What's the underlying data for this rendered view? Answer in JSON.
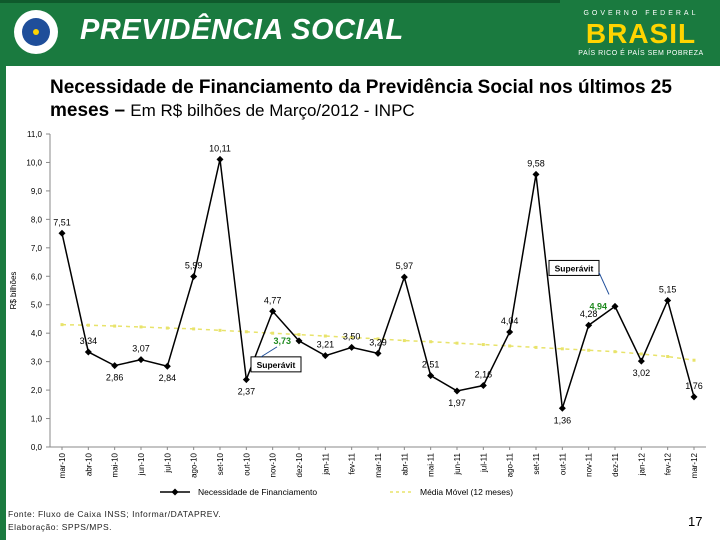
{
  "header": {
    "brand": "PREVIDÊNCIA SOCIAL",
    "gov_line": "GOVERNO FEDERAL",
    "country": "BRASIL",
    "slogan": "PAÍS RICO É PAÍS SEM POBREZA"
  },
  "title": {
    "main": "Necessidade de Financiamento da Previdência Social nos últimos 25 meses –",
    "sub": "Em R$ bilhões de Março/2012 - INPC"
  },
  "footer": {
    "source": "Fonte: Fluxo de Caixa INSS; Informar/DATAPREV.",
    "elaboration": "Elaboração: SPPS/MPS."
  },
  "page_number": "17",
  "colors": {
    "brand_green": "#1a7a3f",
    "series_main": "#000000",
    "series_moving_avg": "#e8e36a",
    "annotation_green": "#1f8a1f"
  },
  "chart_data": {
    "type": "line",
    "ylabel": "R$ bilhões",
    "ylim": [
      0,
      11
    ],
    "yticks": [
      "0,0",
      "1,0",
      "2,0",
      "3,0",
      "4,0",
      "5,0",
      "6,0",
      "7,0",
      "8,0",
      "9,0",
      "10,0",
      "11,0"
    ],
    "grid": false,
    "legend_position": "bottom",
    "categories": [
      "mar-10",
      "abr-10",
      "mai-10",
      "jun-10",
      "jul-10",
      "ago-10",
      "set-10",
      "out-10",
      "nov-10",
      "dez-10",
      "jan-11",
      "fev-11",
      "mar-11",
      "abr-11",
      "mai-11",
      "jun-11",
      "jul-11",
      "ago-11",
      "set-11",
      "out-11",
      "nov-11",
      "dez-11",
      "jan-12",
      "fev-12",
      "mar-12"
    ],
    "series": [
      {
        "name": "Necessidade de Financiamento",
        "values": [
          7.51,
          3.34,
          2.86,
          3.07,
          2.84,
          5.99,
          10.11,
          2.37,
          4.77,
          null,
          3.21,
          3.5,
          3.29,
          5.97,
          2.51,
          1.97,
          2.16,
          4.04,
          9.58,
          1.36,
          4.28,
          4.94,
          3.02,
          5.15,
          1.76
        ],
        "labels": [
          "7,51",
          "3,34",
          "2,86",
          "3,07",
          "2,84",
          "5,99",
          "10,11",
          "2,37",
          "4,77",
          "",
          "3,21",
          "3,50",
          "3,29",
          "5,97",
          "2,51",
          "1,97",
          "2,16",
          "4,04",
          "9,58",
          "1,36",
          "4,28",
          "",
          "3,02",
          "5,15",
          "1,76"
        ]
      },
      {
        "name": "Média Móvel (12 meses)",
        "values": [
          4.3,
          4.28,
          4.25,
          4.22,
          4.18,
          4.15,
          4.1,
          4.05,
          4.0,
          3.95,
          3.9,
          3.85,
          3.8,
          3.74,
          3.7,
          3.65,
          3.6,
          3.55,
          3.5,
          3.45,
          3.4,
          3.35,
          3.27,
          3.18,
          3.05
        ]
      }
    ],
    "annotations": [
      {
        "text": "Superávit",
        "value_label": "3,73",
        "x": "dez-10",
        "y": 3.73
      },
      {
        "text": "Superávit",
        "value_label": "4,94",
        "x": "dez-11",
        "y": 4.94
      }
    ]
  }
}
